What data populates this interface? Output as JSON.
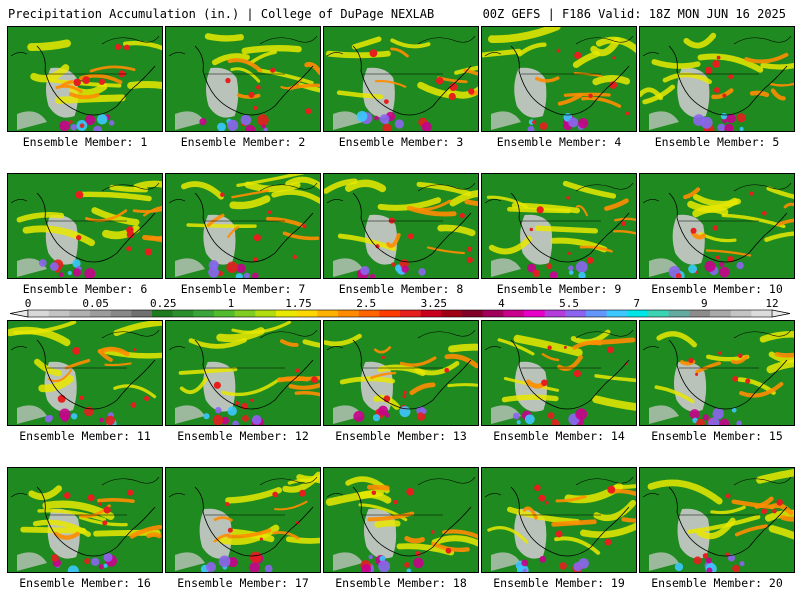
{
  "header": {
    "title_left": "Precipitation Accumulation (in.) | College of DuPage NEXLAB",
    "title_right": "00Z GEFS | F186 Valid: 18Z MON JUN 16 2025"
  },
  "panels": [
    {
      "label": "Ensemble Member: 1"
    },
    {
      "label": "Ensemble Member: 2"
    },
    {
      "label": "Ensemble Member: 3"
    },
    {
      "label": "Ensemble Member: 4"
    },
    {
      "label": "Ensemble Member: 5"
    },
    {
      "label": "Ensemble Member: 6"
    },
    {
      "label": "Ensemble Member: 7"
    },
    {
      "label": "Ensemble Member: 8"
    },
    {
      "label": "Ensemble Member: 9"
    },
    {
      "label": "Ensemble Member: 10"
    },
    {
      "label": "Ensemble Member: 11"
    },
    {
      "label": "Ensemble Member: 12"
    },
    {
      "label": "Ensemble Member: 13"
    },
    {
      "label": "Ensemble Member: 14"
    },
    {
      "label": "Ensemble Member: 15"
    },
    {
      "label": "Ensemble Member: 16"
    },
    {
      "label": "Ensemble Member: 17"
    },
    {
      "label": "Ensemble Member: 18"
    },
    {
      "label": "Ensemble Member: 19"
    },
    {
      "label": "Ensemble Member: 20"
    }
  ],
  "colorbar": {
    "tick_labels": [
      "0",
      "0.05",
      "0.25",
      "1",
      "1.75",
      "2.5",
      "3.25",
      "4",
      "5.5",
      "7",
      "9",
      "12"
    ],
    "colors": [
      "#d8d8d8",
      "#c4c4c4",
      "#b0b0b0",
      "#9c9c9c",
      "#888888",
      "#707070",
      "#1e7a1e",
      "#2b8f2b",
      "#3aa53a",
      "#52bb2e",
      "#80cc20",
      "#b0dc10",
      "#e8e800",
      "#ffd700",
      "#ffb000",
      "#ff8c00",
      "#ff6400",
      "#ff3c00",
      "#e61e1e",
      "#c8001e",
      "#a00014",
      "#800028",
      "#a0005a",
      "#c8008c",
      "#e600c8",
      "#b43cdc",
      "#8c64f0",
      "#6496ff",
      "#3cc8ff",
      "#00e6e6",
      "#3cd2b4",
      "#64aaa0",
      "#8c8c8c",
      "#a8a8a8",
      "#c4c4c4",
      "#dcdcdc"
    ]
  },
  "colors": {
    "land_green": "#1f8a1f",
    "dry_gray": "#c8c8c8",
    "accent_yellow": "#e8e800",
    "accent_orange": "#ff8c00",
    "accent_red": "#e61e1e",
    "accent_magenta": "#c8008c",
    "accent_purple": "#8c64f0",
    "accent_cyan": "#3cc8ff",
    "outline": "#000000"
  }
}
